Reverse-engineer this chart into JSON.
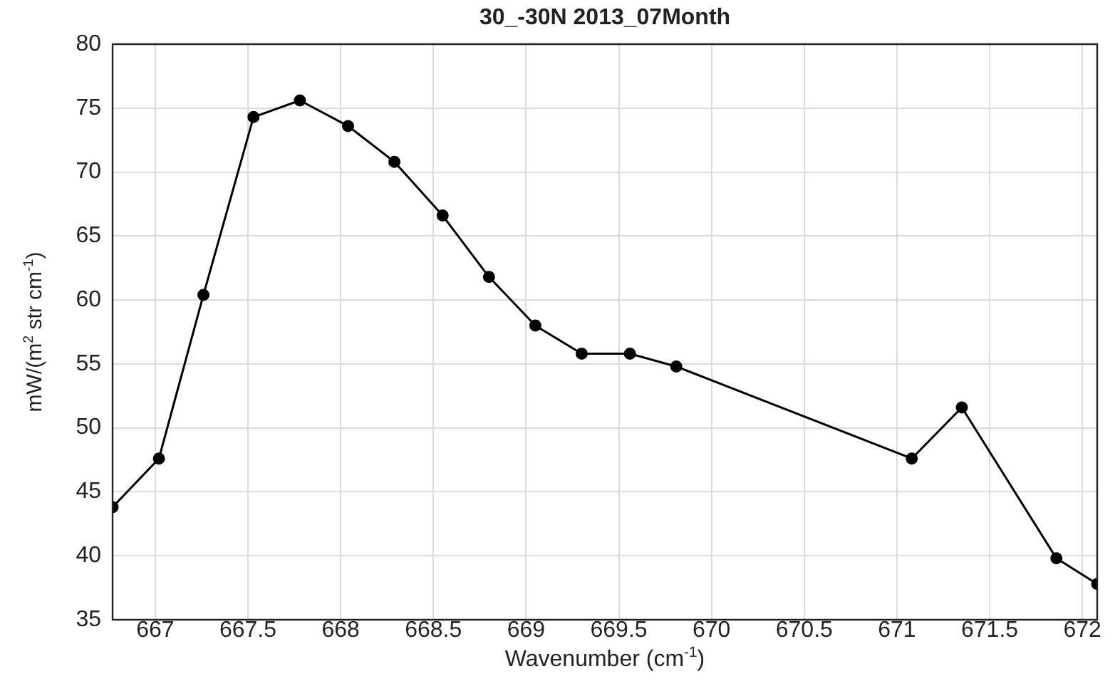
{
  "chart_data": {
    "type": "line",
    "title": "30_-30N  2013_07Month",
    "xlabel": "Wavenumber (cm$^{-1}$)",
    "ylabel": "mW/(m$^{2}$ str cm$^{-1}$)",
    "x": [
      666.77,
      667.02,
      667.26,
      667.53,
      667.78,
      668.04,
      668.29,
      668.55,
      668.8,
      669.05,
      669.3,
      669.56,
      669.81,
      671.08,
      671.35,
      671.86,
      672.08
    ],
    "series": [
      {
        "color": "#000000",
        "values": [
          43.8,
          47.6,
          60.4,
          74.3,
          75.6,
          73.6,
          70.8,
          66.6,
          61.8,
          58.0,
          55.8,
          55.8,
          54.8,
          47.6,
          51.6,
          39.8,
          37.8
        ]
      }
    ],
    "xlim": [
      666.77,
      672.08
    ],
    "xticks": [
      667,
      667.5,
      668,
      668.5,
      669,
      669.5,
      670,
      670.5,
      671,
      671.5,
      672
    ],
    "ylim": [
      35,
      80
    ],
    "yticks": [
      35,
      40,
      45,
      50,
      55,
      60,
      65,
      70,
      75,
      80
    ],
    "grid": true,
    "legend": false,
    "marker": "circle",
    "line_style": "solid"
  }
}
